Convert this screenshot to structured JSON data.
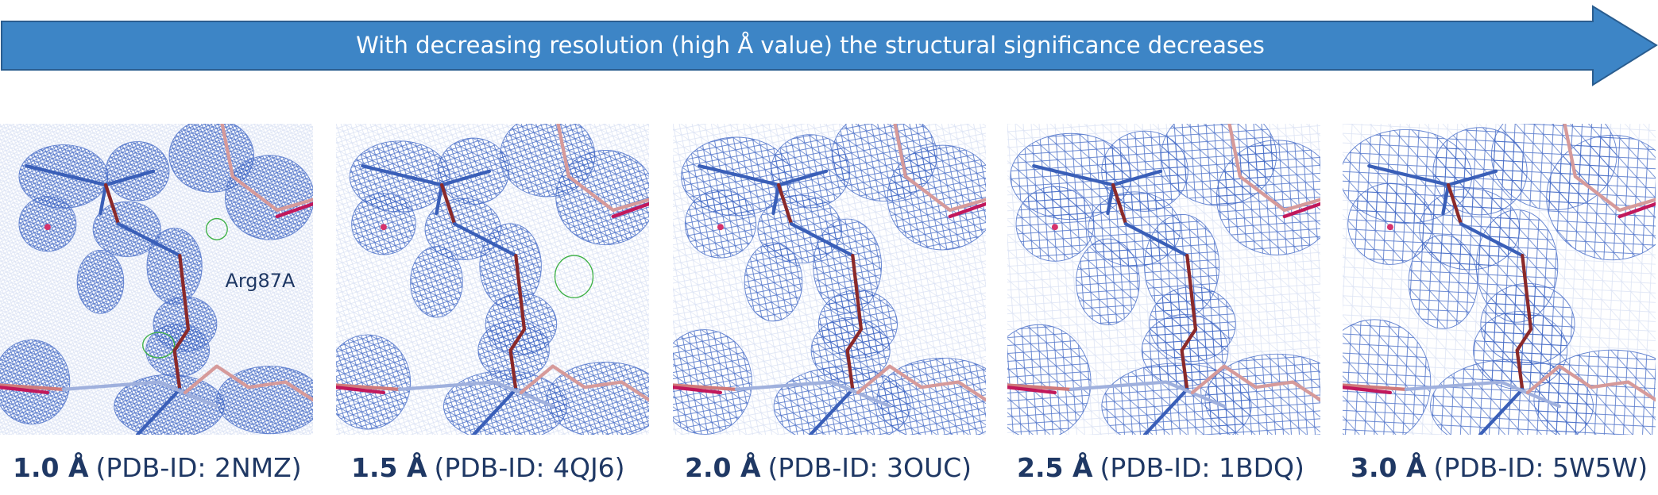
{
  "header": {
    "arrow_text": "With decreasing resolution (high Å value) the structural significance decreases"
  },
  "panels": [
    {
      "resolution": "1.0 Å",
      "pdb": "(PDB-ID: 2NMZ)",
      "label": "Arg87A"
    },
    {
      "resolution": "1.5 Å",
      "pdb": "(PDB-ID: 4QJ6)"
    },
    {
      "resolution": "2.0 Å",
      "pdb": "(PDB-ID: 3OUC)"
    },
    {
      "resolution": "2.5 Å",
      "pdb": "(PDB-ID: 1BDQ)"
    },
    {
      "resolution": "3.0 Å",
      "pdb": "(PDB-ID: 5W5W)"
    }
  ]
}
